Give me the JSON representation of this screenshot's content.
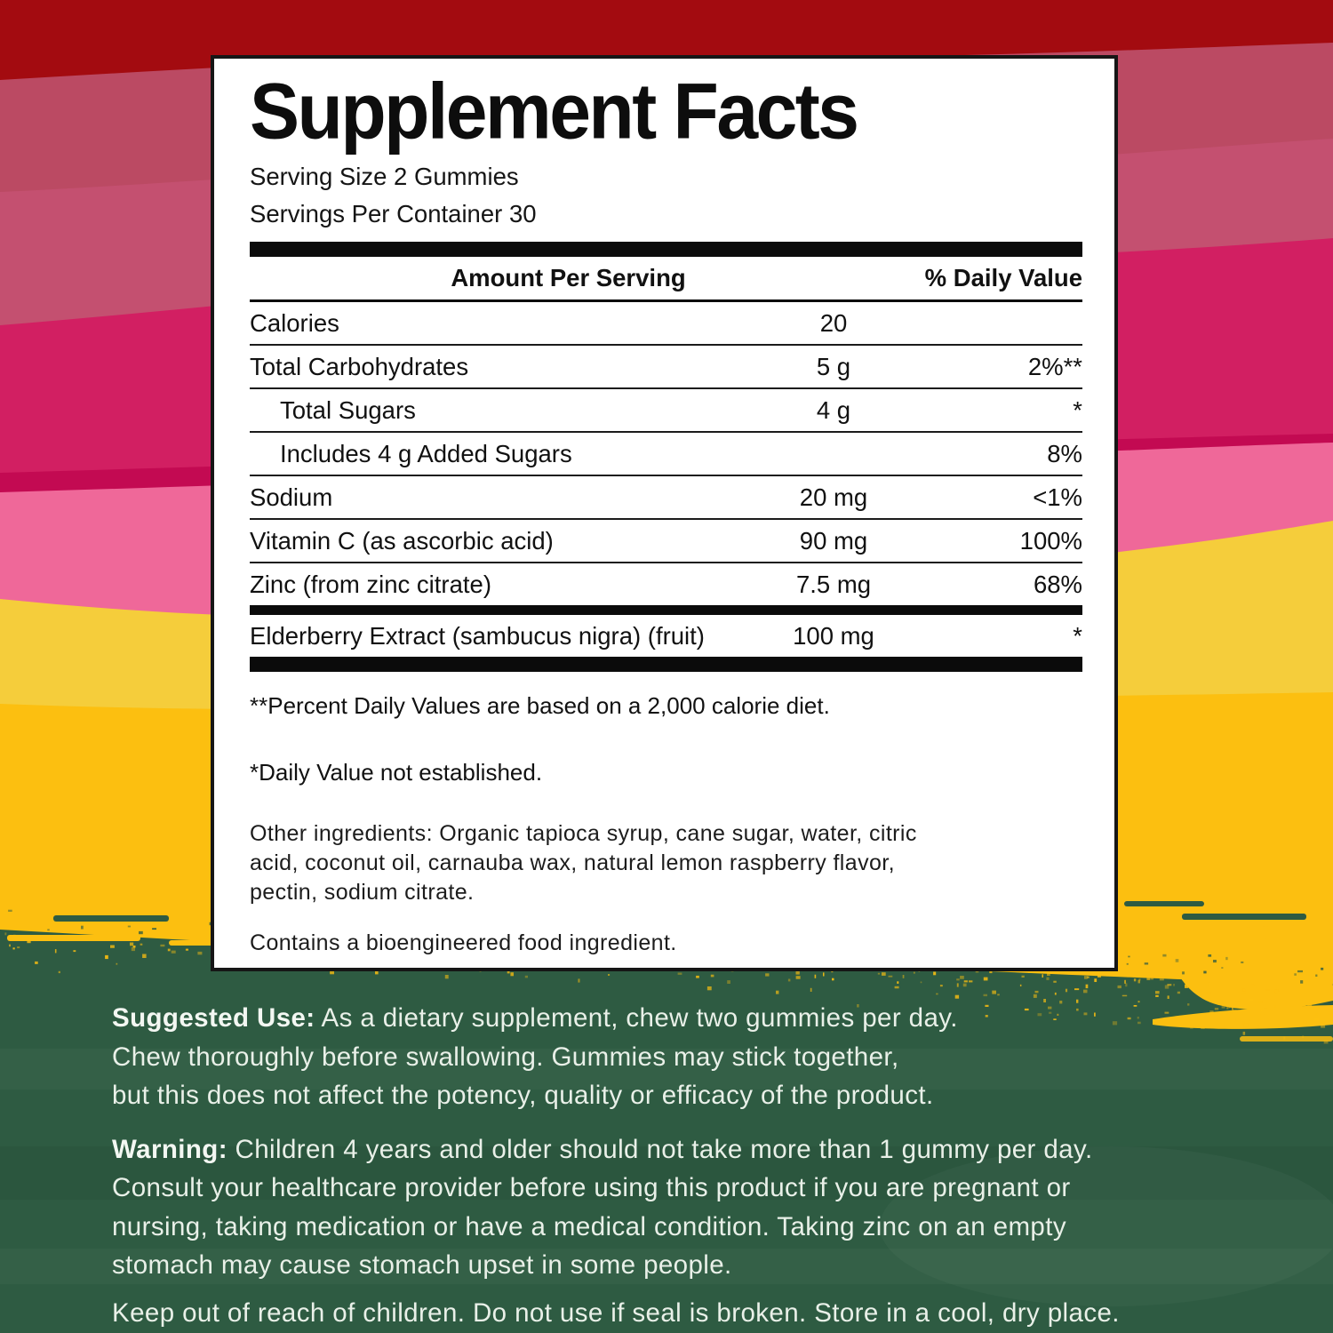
{
  "panel": {
    "title": "Supplement Facts",
    "serving_size": "Serving Size 2 Gummies",
    "servings_per_container": "Servings Per Container 30",
    "columns": {
      "amount": "Amount Per Serving",
      "daily_value": "% Daily Value"
    },
    "rows": [
      {
        "label": "Calories",
        "amount": "20",
        "dv": "",
        "indent": false,
        "after": "sep-thin"
      },
      {
        "label": "Total Carbohydrates",
        "amount": "5 g",
        "dv": "2%**",
        "indent": false,
        "after": "sep-thin"
      },
      {
        "label": "Total Sugars",
        "amount": "4 g",
        "dv": "*",
        "indent": true,
        "after": "sep-thin"
      },
      {
        "label": "Includes 4 g Added Sugars",
        "amount": "",
        "dv": "8%",
        "indent": true,
        "after": "sep-thin"
      },
      {
        "label": "Sodium",
        "amount": "20 mg",
        "dv": "<1%",
        "indent": false,
        "after": "sep-thin"
      },
      {
        "label": "Vitamin C (as ascorbic acid)",
        "amount": "90 mg",
        "dv": "100%",
        "indent": false,
        "after": "sep-thin"
      },
      {
        "label": "Zinc (from zinc citrate)",
        "amount": "7.5 mg",
        "dv": "68%",
        "indent": false,
        "after": "sep-bar"
      },
      {
        "label": "Elderberry Extract (sambucus nigra) (fruit)",
        "amount": "100 mg",
        "dv": "*",
        "indent": false,
        "after": "sep-bar-thick"
      }
    ],
    "footnotes": {
      "percent_dv": "**Percent Daily Values are based on a 2,000 calorie diet.",
      "dv_not_established": "*Daily Value not established.",
      "other_ingredients": "Other ingredients: Organic tapioca syrup, cane sugar, water, citric\nacid, coconut oil, carnauba wax, natural lemon raspberry flavor,\npectin, sodium citrate.",
      "bioengineered": "Contains a bioengineered food ingredient."
    }
  },
  "directions": {
    "suggested_use_label": "Suggested Use:",
    "suggested_use": "As a dietary supplement, chew two gummies per day.\nChew thoroughly before swallowing. Gummies may stick together,\nbut this does not affect the potency, quality or efficacy of the product.",
    "warning_label": "Warning:",
    "warning": "Children 4 years and older should not take more than 1 gummy per day.\nConsult your healthcare provider before using this product if you are pregnant or\nnursing, taking medication or have a medical condition. Taking zinc on an empty\nstomach may cause stomach upset in some people.",
    "storage": "Keep out of reach of children. Do not use if seal is broken. Store in a cool, dry place."
  },
  "colors": {
    "band_dark_red": "#a30b10",
    "band_rose_1": "#bb4a63",
    "band_rose_2": "#c45070",
    "band_magenta": "#d21f62",
    "band_magenta_edge": "#c30a52",
    "band_light_pink": "#ef6899",
    "band_yellow_light": "#f5cd3b",
    "band_amber": "#fcbf10",
    "band_green": "#2e5b42",
    "panel_bg": "#ffffff",
    "panel_text": "#111111",
    "green_copy_text": "#e9f0e8"
  }
}
